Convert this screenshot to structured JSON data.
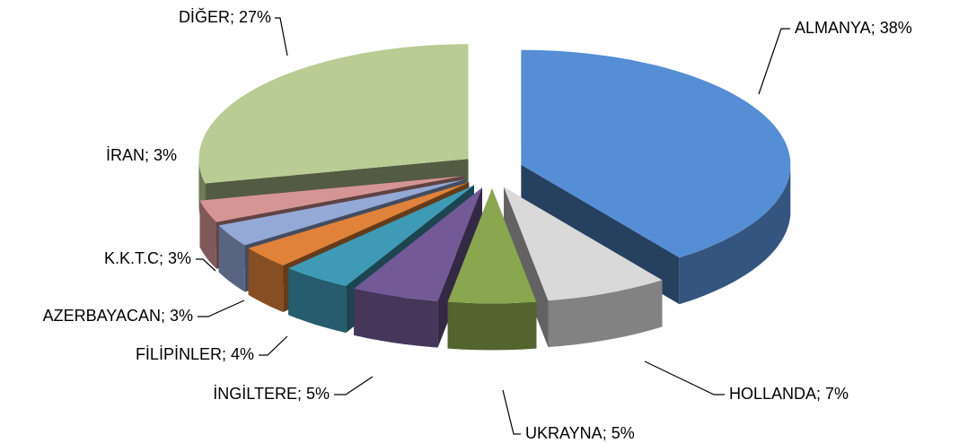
{
  "chart_data": {
    "type": "pie",
    "categories": [
      "ALMANYA",
      "HOLLANDA",
      "UKRAYNA",
      "İNGİLTERE",
      "FİLİPİNLER",
      "AZERBAYACAN",
      "K.K.T.C",
      "İRAN",
      "DİĞER"
    ],
    "values": [
      38,
      7,
      5,
      5,
      4,
      3,
      3,
      3,
      27
    ],
    "value_labels": [
      "38%",
      "7%",
      "5%",
      "5%",
      "4%",
      "3%",
      "3%",
      "3%",
      "27%"
    ],
    "label_separator": "; ",
    "colors": [
      "#558ed5",
      "#d9d9d9",
      "#8aa64e",
      "#735a96",
      "#3f9ab5",
      "#e0823a",
      "#94a9d6",
      "#d69595",
      "#b8cc93"
    ]
  }
}
